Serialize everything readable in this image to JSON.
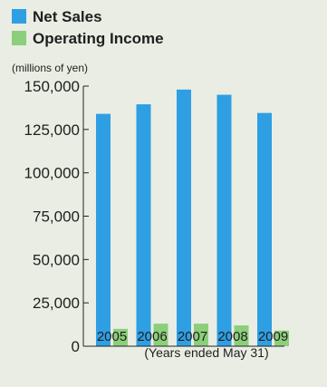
{
  "chart_data": {
    "type": "bar",
    "categories": [
      "2005",
      "2006",
      "2007",
      "2008",
      "2009"
    ],
    "series": [
      {
        "name": "Net Sales",
        "values": [
          134000,
          139500,
          148000,
          145000,
          134500
        ],
        "color": "#2e9fe3"
      },
      {
        "name": "Operating Income",
        "values": [
          10000,
          13000,
          13000,
          12000,
          9000
        ],
        "color": "#8ccf7a"
      }
    ],
    "unit_label": "(millions of yen)",
    "x_caption": "(Years ended May 31)",
    "ylim": [
      0,
      150000
    ],
    "y_ticks": [
      "0",
      "25,000",
      "50,000",
      "75,000",
      "100,000",
      "125,000",
      "150,000"
    ],
    "legend_position": "top-left",
    "grid": false
  }
}
